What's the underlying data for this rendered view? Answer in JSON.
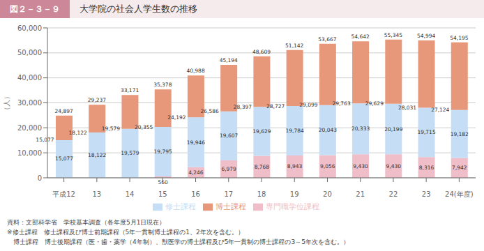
{
  "chart_data": {
    "type": "bar",
    "stacked": true,
    "title": "大学院の社会人学生数の推移",
    "subtitle": "図２－３－９",
    "ylabel": "（人）",
    "categories": [
      "平成12",
      "13",
      "14",
      "15",
      "16",
      "17",
      "18",
      "19",
      "20",
      "21",
      "22",
      "23",
      "24(年度)"
    ],
    "series": [
      {
        "name": "専門職学位課程",
        "color": "#f0bec8",
        "data_labels": true,
        "values": [
          0,
          0,
          0,
          560,
          4246,
          6979,
          8768,
          8943,
          9056,
          9430,
          9430,
          8316,
          7942
        ],
        "value_labels": [
          null,
          null,
          null,
          "560",
          "4,246",
          "6,979",
          "8,768",
          "8,943",
          "9,056",
          "9,430",
          "9,430",
          "8,316",
          "7,942"
        ]
      },
      {
        "name": "修士課程",
        "color": "#c5ddf5",
        "data_labels": true,
        "values": [
          15077,
          18122,
          19579,
          19795,
          19946,
          19607,
          19629,
          19784,
          20043,
          20333,
          20199,
          19715,
          19182
        ],
        "value_labels": [
          "15,077",
          "18,122",
          "19,579",
          "19,795",
          "19,946",
          "19,607",
          "19,629",
          "19,784",
          "20,043",
          "20,333",
          "20,199",
          "19,715",
          "19,182"
        ]
      },
      {
        "name": "博士課程",
        "color": "#e8987a",
        "data_labels": false,
        "values": [
          9820,
          11115,
          13592,
          15023,
          16796,
          18608,
          20212,
          22415,
          24568,
          24879,
          25716,
          26963,
          27071
        ]
      }
    ],
    "subtotals": [
      15077,
      18122,
      19579,
      20355,
      24192,
      26586,
      28397,
      28727,
      29099,
      29763,
      29629,
      28031,
      27124
    ],
    "subtotal_labels": [
      "15,077",
      "18,122",
      "19,579",
      "20,355",
      "24,192",
      "26,586",
      "28,397",
      "28,727",
      "29,099",
      "29,763",
      "29,629",
      "28,031",
      "27,124"
    ],
    "totals": [
      24897,
      29237,
      33171,
      35378,
      40988,
      45194,
      48609,
      51142,
      53667,
      54642,
      55345,
      54994,
      54195
    ],
    "total_labels": [
      "24,897",
      "29,237",
      "33,171",
      "35,378",
      "40,988",
      "45,194",
      "48,609",
      "51,142",
      "53,667",
      "54,642",
      "55,345",
      "54,994",
      "54,195"
    ],
    "ylim": [
      0,
      60000
    ],
    "yticks": [
      0,
      {
        "value": 10000,
        "label": "10,000"
      },
      {
        "value": 20000,
        "label": "20,000"
      },
      {
        "value": 30000,
        "label": "30,000"
      },
      {
        "value": 40000,
        "label": "40,000"
      },
      {
        "value": 50000,
        "label": "50,000"
      },
      {
        "value": 60000,
        "label": "60,000"
      }
    ],
    "grid": true,
    "legend": "bottom",
    "data_labels": true,
    "annotations": [
      "資料：文部科学省　学校基本調査（各年度5月1日現在）",
      "※修士課程　修士課程及び博士前期課程（5年一貫制博士課程の1、2年次を含む。）",
      "　博士課程　博士後期課程（医・歯・薬学（4年制）、獣医学の博士課程及び5年一貫制の博士課程の3～5年次を含む。）"
    ]
  }
}
